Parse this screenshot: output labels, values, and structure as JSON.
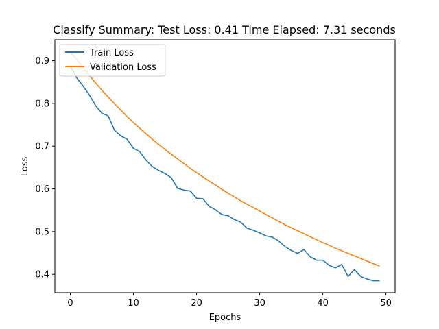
{
  "chart_data": {
    "type": "line",
    "title": "Classify Summary: Test Loss: 0.41 Time Elapsed: 7.31 seconds",
    "xlabel": "Epochs",
    "ylabel": "Loss",
    "xlim": [
      -2.45,
      51.45
    ],
    "ylim": [
      0.357,
      0.949
    ],
    "xticks": [
      0,
      10,
      20,
      30,
      40,
      50
    ],
    "yticks": [
      0.4,
      0.5,
      0.6,
      0.7,
      0.8,
      0.9
    ],
    "xtick_labels": [
      "0",
      "10",
      "20",
      "30",
      "40",
      "50"
    ],
    "ytick_labels": [
      "0.4",
      "0.5",
      "0.6",
      "0.7",
      "0.8",
      "0.9"
    ],
    "grid": false,
    "legend_position": "upper left",
    "series": [
      {
        "name": "Train Loss",
        "color": "#1f77b4",
        "x": [
          0,
          1,
          2,
          3,
          4,
          5,
          6,
          7,
          8,
          9,
          10,
          11,
          12,
          13,
          14,
          15,
          16,
          17,
          18,
          19,
          20,
          21,
          22,
          23,
          24,
          25,
          26,
          27,
          28,
          29,
          30,
          31,
          32,
          33,
          34,
          35,
          36,
          37,
          38,
          39,
          40,
          41,
          42,
          43,
          44,
          45,
          46,
          47,
          48,
          49
        ],
        "values": [
          0.888,
          0.86,
          0.841,
          0.82,
          0.795,
          0.777,
          0.771,
          0.737,
          0.724,
          0.716,
          0.695,
          0.687,
          0.667,
          0.652,
          0.643,
          0.636,
          0.626,
          0.601,
          0.597,
          0.595,
          0.578,
          0.577,
          0.559,
          0.551,
          0.54,
          0.537,
          0.528,
          0.522,
          0.508,
          0.503,
          0.497,
          0.49,
          0.487,
          0.478,
          0.465,
          0.456,
          0.449,
          0.458,
          0.441,
          0.433,
          0.433,
          0.421,
          0.415,
          0.423,
          0.395,
          0.411,
          0.395,
          0.389,
          0.385,
          0.385
        ]
      },
      {
        "name": "Validation Loss",
        "color": "#ff7f0e",
        "x": [
          0,
          1,
          2,
          3,
          4,
          5,
          6,
          7,
          8,
          9,
          10,
          11,
          12,
          13,
          14,
          15,
          16,
          17,
          18,
          19,
          20,
          21,
          22,
          23,
          24,
          25,
          26,
          27,
          28,
          29,
          30,
          31,
          32,
          33,
          34,
          35,
          36,
          37,
          38,
          39,
          40,
          41,
          42,
          43,
          44,
          45,
          46,
          47,
          48,
          49
        ],
        "values": [
          0.922,
          0.903,
          0.884,
          0.866,
          0.848,
          0.831,
          0.815,
          0.799,
          0.784,
          0.769,
          0.755,
          0.742,
          0.729,
          0.716,
          0.704,
          0.692,
          0.681,
          0.67,
          0.659,
          0.648,
          0.638,
          0.628,
          0.618,
          0.609,
          0.599,
          0.59,
          0.581,
          0.572,
          0.564,
          0.556,
          0.548,
          0.54,
          0.532,
          0.524,
          0.516,
          0.509,
          0.502,
          0.495,
          0.488,
          0.481,
          0.474,
          0.468,
          0.461,
          0.455,
          0.449,
          0.443,
          0.437,
          0.431,
          0.425,
          0.419
        ]
      }
    ]
  }
}
